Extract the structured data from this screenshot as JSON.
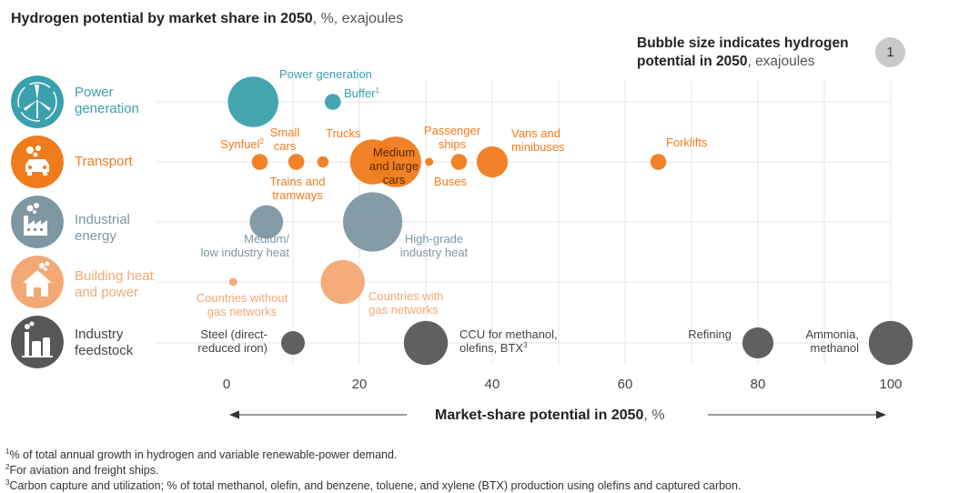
{
  "title": {
    "main": "Hydrogen potential by market share in 2050",
    "unit": ", %, exajoules"
  },
  "legend": {
    "line1": "Bubble size indicates hydrogen",
    "line2_bold": "potential in 2050",
    "line2_unit": ", exajoules",
    "circle_label": "1"
  },
  "categories": [
    {
      "id": "power",
      "label_line1": "Power",
      "label_line2": "generation",
      "color": "#3aa0ad",
      "icon": "wind-turbine-icon"
    },
    {
      "id": "transport",
      "label_line1": "Transport",
      "label_line2": "",
      "color": "#f07b1c",
      "icon": "car-icon"
    },
    {
      "id": "industrial_energy",
      "label_line1": "Industrial",
      "label_line2": "energy",
      "color": "#7f96a3",
      "icon": "factory-icon"
    },
    {
      "id": "building",
      "label_line1": "Building heat",
      "label_line2": "and power",
      "color": "#f4a873",
      "icon": "house-icon"
    },
    {
      "id": "feedstock",
      "label_line1": "Industry",
      "label_line2": "feedstock",
      "color": "#575757",
      "icon": "refinery-icon"
    }
  ],
  "chart_data": {
    "type": "scatter",
    "subtype": "bubble",
    "title": "Hydrogen potential by market share in 2050, %, exajoules",
    "xlabel": "Market-share potential in 2050, %",
    "xlim": [
      0,
      100
    ],
    "xticks": [
      0,
      20,
      40,
      60,
      80,
      100
    ],
    "grid": true,
    "rows": [
      "Power generation",
      "Transport",
      "Industrial energy",
      "Building heat and power",
      "Industry feedstock"
    ],
    "points": [
      {
        "row": 0,
        "x": 4,
        "size": 5.0,
        "label": [
          "Power generation"
        ]
      },
      {
        "row": 0,
        "x": 16,
        "size": 0.5,
        "label": [
          "Buffer"
        ],
        "sup": "1"
      },
      {
        "row": 1,
        "x": 5,
        "size": 0.5,
        "label": [
          "Synfuel"
        ],
        "sup": "2"
      },
      {
        "row": 1,
        "x": 10.5,
        "size": 0.5,
        "label": [
          "Small",
          "cars"
        ]
      },
      {
        "row": 1,
        "x": 14.5,
        "size": 0.25,
        "label": [
          "Trucks"
        ]
      },
      {
        "row": 1,
        "x": 22,
        "size": 4.0,
        "label": []
      },
      {
        "row": 1,
        "x": 25.5,
        "size": 5.0,
        "label": [
          "Medium",
          "and large",
          "cars"
        ]
      },
      {
        "row": 1,
        "x": 30.5,
        "size": 0.1,
        "label": [
          "Passenger",
          "ships"
        ]
      },
      {
        "row": 1,
        "x": 35,
        "size": 0.5,
        "label": [
          "Buses"
        ]
      },
      {
        "row": 1,
        "x": 40,
        "size": 1.9,
        "label": [
          "Vans and",
          "minibuses"
        ]
      },
      {
        "row": 1,
        "x": 65,
        "size": 0.5,
        "label": [
          "Forklifts"
        ]
      },
      {
        "row": 1,
        "x": 11,
        "size": 0,
        "label": [
          "Trains and",
          "tramways"
        ]
      },
      {
        "row": 2,
        "x": 6,
        "size": 2.2,
        "label": [
          "Medium/",
          "low industry heat"
        ]
      },
      {
        "row": 2,
        "x": 22,
        "size": 6.9,
        "label": [
          "High-grade",
          "industry heat"
        ]
      },
      {
        "row": 3,
        "x": 1,
        "size": 0.1,
        "label": [
          "Countries without",
          "gas networks"
        ]
      },
      {
        "row": 3,
        "x": 17.5,
        "size": 3.8,
        "label": [
          "Countries with",
          "gas networks"
        ]
      },
      {
        "row": 4,
        "x": 10,
        "size": 1.1,
        "label": [
          "Steel (direct-",
          "reduced iron)"
        ]
      },
      {
        "row": 4,
        "x": 30,
        "size": 3.8,
        "label": [
          "CCU for methanol,",
          "olefins, BTX"
        ],
        "sup": "3"
      },
      {
        "row": 4,
        "x": 80,
        "size": 1.9,
        "label": [
          "Refining"
        ]
      },
      {
        "row": 4,
        "x": 100,
        "size": 3.8,
        "label": [
          "Ammonia,",
          "methanol"
        ]
      }
    ]
  },
  "footnotes": [
    {
      "sup": "1",
      "text": "% of total annual growth in hydrogen and variable renewable-power demand."
    },
    {
      "sup": "2",
      "text": "For aviation and freight ships."
    },
    {
      "sup": "3",
      "text": "Carbon capture and utilization; % of total methanol, olefin, and benzene, toluene, and xylene (BTX) production using olefins and captured carbon."
    }
  ],
  "xaxis": {
    "title": "Market-share potential in 2050",
    "unit": ", %"
  }
}
